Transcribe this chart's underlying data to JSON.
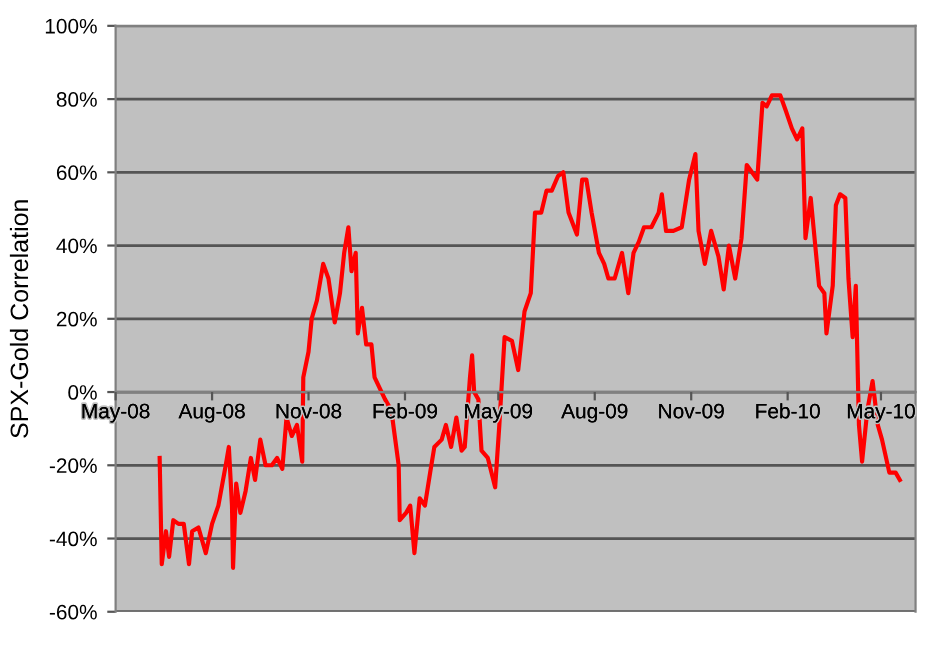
{
  "chart_data": {
    "type": "line",
    "ylabel": "SPX-Gold Correlation",
    "grid": "y",
    "marker": "none",
    "line_style": "solid",
    "xlim": [
      "2008-05-01",
      "2010-06-03"
    ],
    "xticks": [
      {
        "value": "2008-05-01",
        "label": "May-08"
      },
      {
        "value": "2008-08-01",
        "label": "Aug-08"
      },
      {
        "value": "2008-11-01",
        "label": "Nov-08"
      },
      {
        "value": "2009-02-01",
        "label": "Feb-09"
      },
      {
        "value": "2009-05-01",
        "label": "May-09"
      },
      {
        "value": "2009-08-01",
        "label": "Aug-09"
      },
      {
        "value": "2009-11-01",
        "label": "Nov-09"
      },
      {
        "value": "2010-02-01",
        "label": "Feb-10"
      },
      {
        "value": "2010-05-01",
        "label": "May-10"
      }
    ],
    "ylim": [
      -60,
      100
    ],
    "yticks": [
      {
        "value": -60,
        "label": "-60%"
      },
      {
        "value": -40,
        "label": "-40%"
      },
      {
        "value": -20,
        "label": "-20%"
      },
      {
        "value": 0,
        "label": "0%"
      },
      {
        "value": 20,
        "label": "20%"
      },
      {
        "value": 40,
        "label": "40%"
      },
      {
        "value": 60,
        "label": "60%"
      },
      {
        "value": 80,
        "label": "80%"
      },
      {
        "value": 100,
        "label": "100%"
      }
    ],
    "x": [
      "2008-06-12",
      "2008-06-14",
      "2008-06-18",
      "2008-06-21",
      "2008-06-25",
      "2008-06-30",
      "2008-07-05",
      "2008-07-10",
      "2008-07-13",
      "2008-07-19",
      "2008-07-26",
      "2008-08-01",
      "2008-08-07",
      "2008-08-14",
      "2008-08-17",
      "2008-08-20",
      "2008-08-21",
      "2008-08-24",
      "2008-08-28",
      "2008-09-02",
      "2008-09-07",
      "2008-09-11",
      "2008-09-16",
      "2008-09-21",
      "2008-09-27",
      "2008-10-02",
      "2008-10-07",
      "2008-10-11",
      "2008-10-16",
      "2008-10-21",
      "2008-10-26",
      "2008-10-27",
      "2008-11-01",
      "2008-11-04",
      "2008-11-09",
      "2008-11-15",
      "2008-11-20",
      "2008-11-26",
      "2008-12-01",
      "2008-12-05",
      "2008-12-09",
      "2008-12-12",
      "2008-12-16",
      "2008-12-18",
      "2008-12-22",
      "2008-12-26",
      "2008-12-31",
      "2009-01-03",
      "2009-01-08",
      "2009-01-13",
      "2009-01-19",
      "2009-01-26",
      "2009-01-27",
      "2009-02-02",
      "2009-02-06",
      "2009-02-10",
      "2009-02-15",
      "2009-02-20",
      "2009-02-25",
      "2009-03-01",
      "2009-03-08",
      "2009-03-12",
      "2009-03-17",
      "2009-03-22",
      "2009-03-27",
      "2009-03-30",
      "2009-04-04",
      "2009-04-06",
      "2009-04-08",
      "2009-04-12",
      "2009-04-15",
      "2009-04-21",
      "2009-04-28",
      "2009-05-02",
      "2009-05-07",
      "2009-05-14",
      "2009-05-20",
      "2009-05-26",
      "2009-06-01",
      "2009-06-05",
      "2009-06-11",
      "2009-06-16",
      "2009-06-21",
      "2009-06-27",
      "2009-07-02",
      "2009-07-07",
      "2009-07-15",
      "2009-07-20",
      "2009-07-24",
      "2009-07-29",
      "2009-08-05",
      "2009-08-10",
      "2009-08-14",
      "2009-08-20",
      "2009-08-27",
      "2009-09-02",
      "2009-09-07",
      "2009-09-12",
      "2009-09-17",
      "2009-09-24",
      "2009-10-01",
      "2009-10-04",
      "2009-10-08",
      "2009-10-15",
      "2009-10-23",
      "2009-10-30",
      "2009-11-05",
      "2009-11-08",
      "2009-11-14",
      "2009-11-20",
      "2009-11-27",
      "2009-12-02",
      "2009-12-07",
      "2009-12-13",
      "2009-12-19",
      "2009-12-24",
      "2009-12-29",
      "2010-01-03",
      "2010-01-08",
      "2010-01-12",
      "2010-01-17",
      "2010-01-25",
      "2010-01-30",
      "2010-02-05",
      "2010-02-10",
      "2010-02-15",
      "2010-02-18",
      "2010-02-23",
      "2010-02-28",
      "2010-03-03",
      "2010-03-08",
      "2010-03-10",
      "2010-03-16",
      "2010-03-19",
      "2010-03-23",
      "2010-03-28",
      "2010-03-31",
      "2010-04-04",
      "2010-04-07",
      "2010-04-10",
      "2010-04-13",
      "2010-04-18",
      "2010-04-23",
      "2010-04-28",
      "2010-05-02",
      "2010-05-09",
      "2010-05-15",
      "2010-05-19"
    ],
    "series": [
      {
        "color": "#ff0000",
        "values": [
          -18,
          -47,
          -38,
          -45,
          -35,
          -36,
          -36,
          -47,
          -38,
          -37,
          -44,
          -36,
          -31,
          -20,
          -15,
          -31,
          -48,
          -25,
          -33,
          -27,
          -18,
          -24,
          -13,
          -20,
          -20,
          -18,
          -21,
          -7,
          -12,
          -9,
          -19,
          4,
          11,
          20,
          25,
          35,
          31,
          19,
          27,
          38,
          45,
          33,
          38,
          16,
          23,
          13,
          13,
          4,
          1,
          -2,
          -5,
          -20,
          -35,
          -33,
          -31,
          -44,
          -29,
          -31,
          -22,
          -15,
          -13,
          -9,
          -15,
          -7,
          -16,
          -15,
          4,
          10,
          0,
          -2,
          -16,
          -18,
          -26,
          -9,
          15,
          14,
          6,
          22,
          27,
          49,
          49,
          55,
          55,
          59,
          60,
          49,
          43,
          58,
          58,
          49,
          38,
          35,
          31,
          31,
          38,
          27,
          38,
          41,
          45,
          45,
          49,
          54,
          44,
          44,
          45,
          58,
          65,
          44,
          35,
          44,
          37,
          28,
          40,
          31,
          42,
          62,
          60,
          58,
          79,
          78,
          81,
          81,
          77,
          72,
          69,
          72,
          42,
          53,
          38,
          29,
          27,
          16,
          29,
          51,
          54,
          53,
          31,
          15,
          29,
          -9,
          -19,
          -5,
          3,
          -9,
          -13,
          -22,
          -22,
          -24
        ]
      }
    ]
  }
}
